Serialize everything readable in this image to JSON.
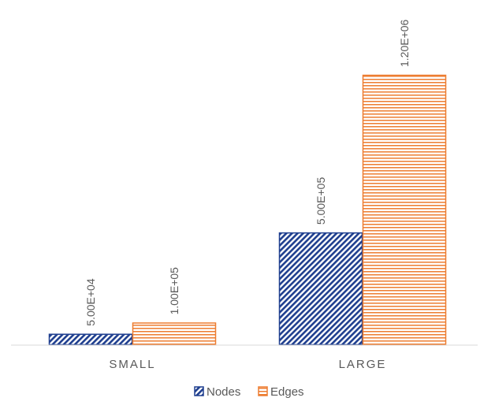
{
  "chart_data": {
    "type": "bar",
    "categories": [
      "SMALL",
      "LARGE"
    ],
    "series": [
      {
        "name": "Nodes",
        "values": [
          50000,
          500000
        ],
        "labels": [
          "5.00E+04",
          "5.00E+05"
        ],
        "color": "#1f3f8f",
        "pattern": "diagonal-hatch"
      },
      {
        "name": "Edges",
        "values": [
          100000,
          1200000
        ],
        "labels": [
          "1.00E+05",
          "1.20E+06"
        ],
        "color": "#ed7d31",
        "pattern": "horizontal-lines"
      }
    ],
    "ylim": [
      0,
      1200000
    ],
    "grid": false,
    "legend": "bottom"
  }
}
